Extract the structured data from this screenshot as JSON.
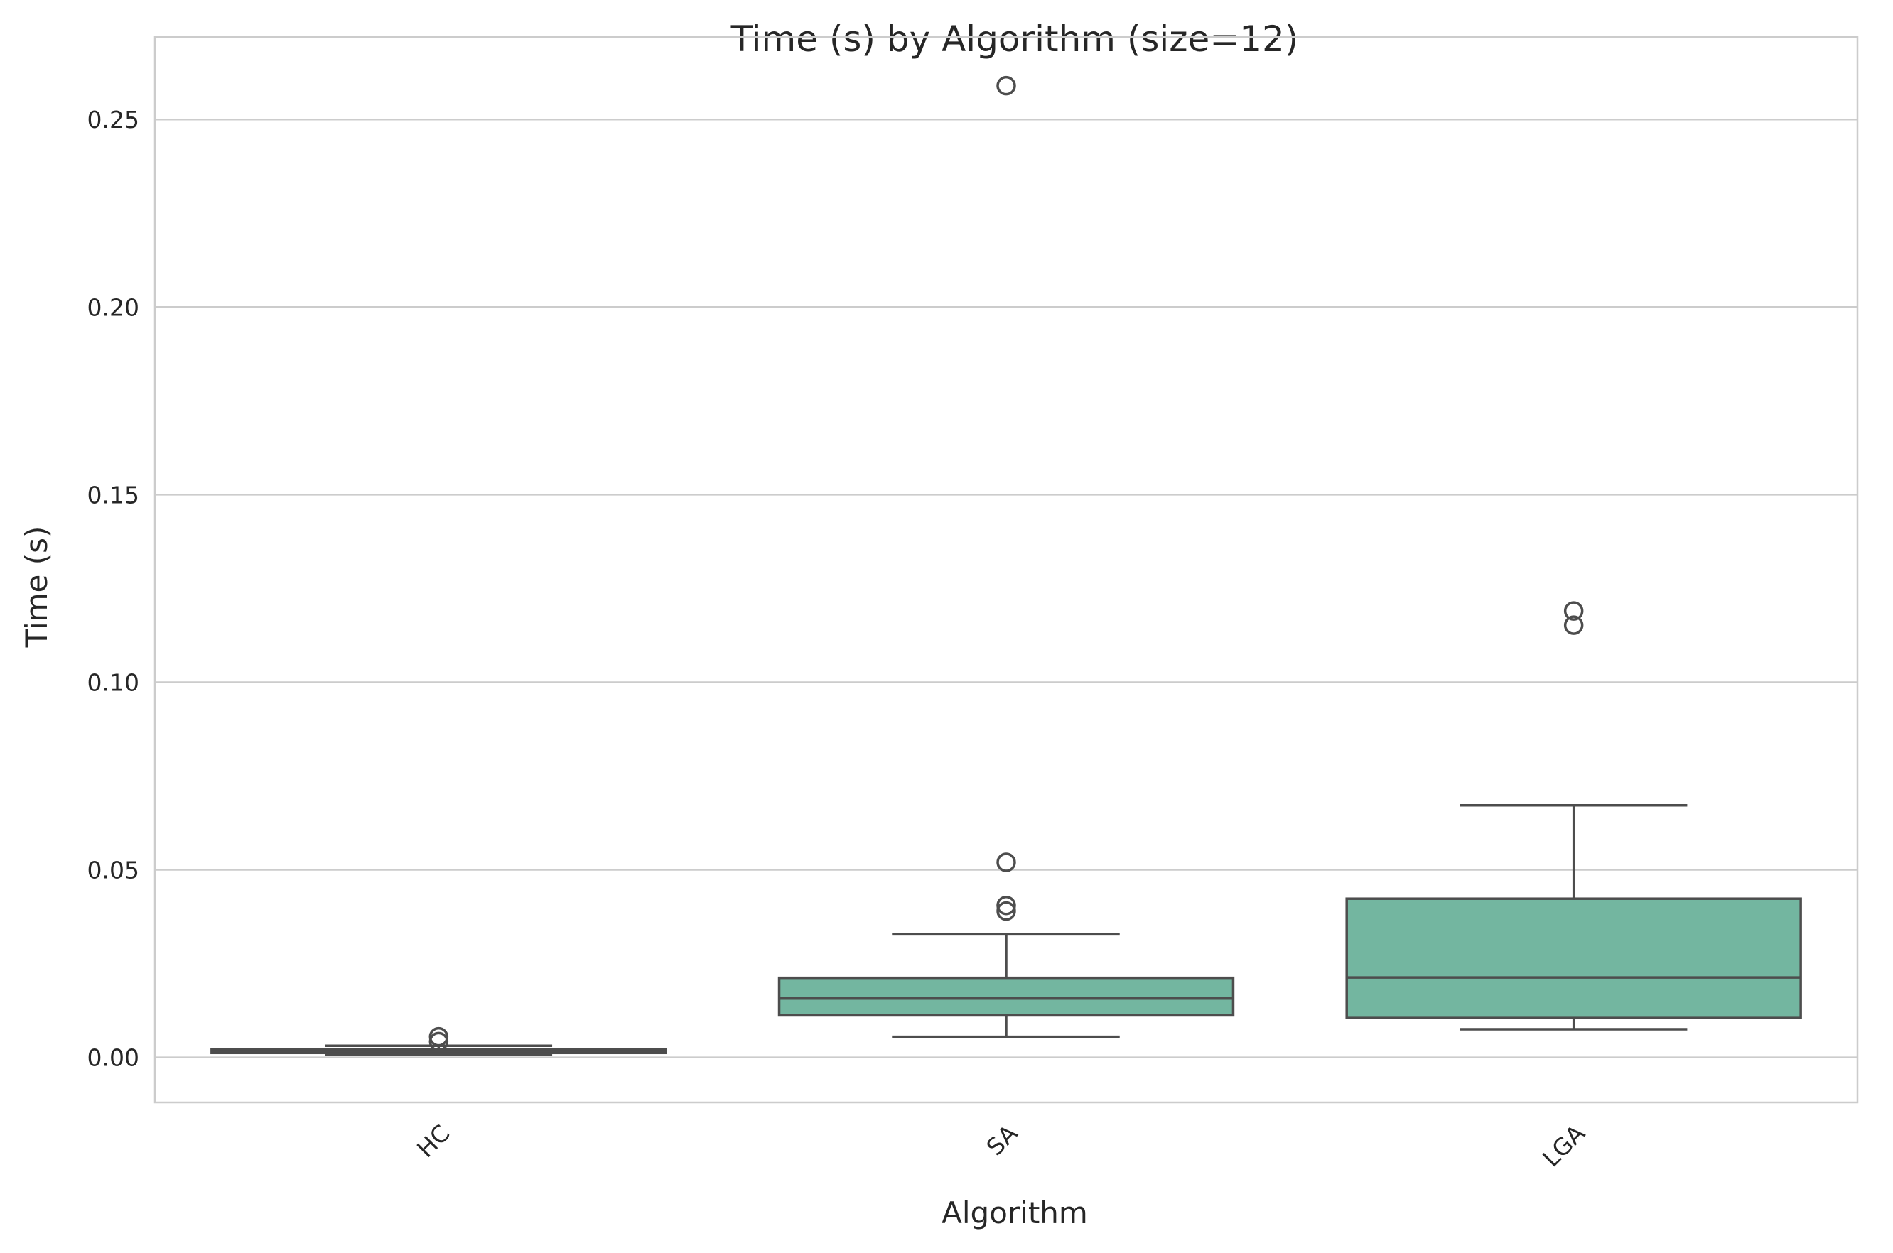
{
  "chart_data": {
    "type": "box",
    "title": "Time (s) by Algorithm (size=12)",
    "xlabel": "Algorithm",
    "ylabel": "Time (s)",
    "categories": [
      "HC",
      "SA",
      "LGA"
    ],
    "ylim": [
      -0.012,
      0.272
    ],
    "yticks": [
      0.0,
      0.05,
      0.1,
      0.15,
      0.2,
      0.25
    ],
    "ytick_labels": [
      "0.00",
      "0.05",
      "0.10",
      "0.15",
      "0.20",
      "0.25"
    ],
    "grid": true,
    "box_color": "#73b6a0",
    "line_color": "#4d4d4d",
    "boxes": [
      {
        "category": "HC",
        "whisker_low": 0.0008,
        "q1": 0.0012,
        "median": 0.0016,
        "q3": 0.0021,
        "whisker_high": 0.0031,
        "fliers": [
          0.0055,
          0.0042
        ]
      },
      {
        "category": "SA",
        "whisker_low": 0.0055,
        "q1": 0.0112,
        "median": 0.0157,
        "q3": 0.0212,
        "whisker_high": 0.0328,
        "fliers": [
          0.259,
          0.052,
          0.0405,
          0.039
        ]
      },
      {
        "category": "LGA",
        "whisker_low": 0.0075,
        "q1": 0.0105,
        "median": 0.0213,
        "q3": 0.0423,
        "whisker_high": 0.0672,
        "fliers": [
          0.119,
          0.1152
        ]
      }
    ]
  }
}
